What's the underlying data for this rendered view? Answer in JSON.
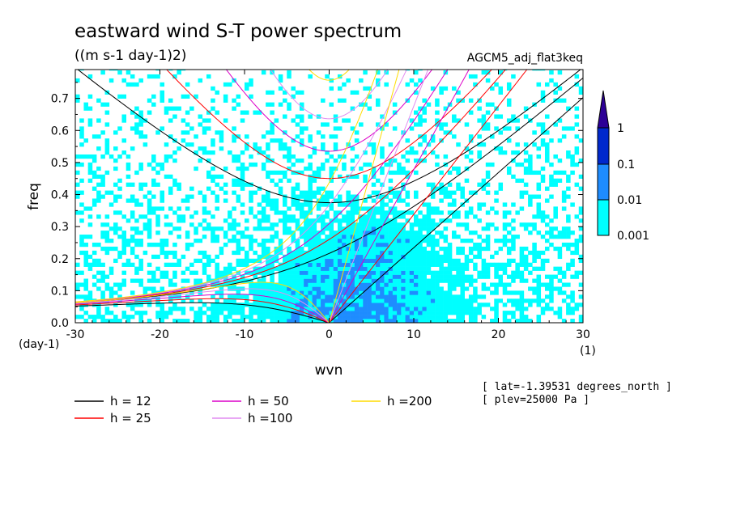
{
  "chart_data": {
    "type": "heatmap",
    "title": "eastward wind S-T power spectrum",
    "subtitle": "((m s-1 day-1)2)",
    "run_label": "AGCM5_adj_flat3keq",
    "xlabel": "wvn",
    "ylabel": "freq",
    "x_unit": "(1)",
    "y_unit": "(day-1)",
    "xlim": [
      -30,
      30
    ],
    "ylim": [
      0,
      0.79
    ],
    "x_ticks": [
      -30,
      -20,
      -10,
      0,
      10,
      20,
      30
    ],
    "x_tick_labels": [
      "-30",
      "-20",
      "-10",
      "0",
      "10",
      "20",
      "30"
    ],
    "y_ticks": [
      0.0,
      0.1,
      0.2,
      0.3,
      0.4,
      0.5,
      0.6,
      0.7
    ],
    "y_tick_labels": [
      "0.0",
      "0.1",
      "0.2",
      "0.3",
      "0.4",
      "0.5",
      "0.6",
      "0.7"
    ],
    "colorbar": {
      "levels": [
        0.001,
        0.01,
        0.1,
        1
      ],
      "level_labels": [
        "0.001",
        "0.01",
        "0.1",
        "1"
      ],
      "colors": [
        "#00ffff",
        "#1e8cff",
        "#0028cd",
        "#2d0096"
      ]
    },
    "dispersion_curves": [
      {
        "name": "h = 12",
        "h": 12,
        "color": "#000000"
      },
      {
        "name": "h = 25",
        "h": 25,
        "color": "#ff0000"
      },
      {
        "name": "h = 50",
        "h": 50,
        "color": "#dc00c8"
      },
      {
        "name": "h =100",
        "h": 100,
        "color": "#e18cf0"
      },
      {
        "name": "h =200",
        "h": 200,
        "color": "#ffdc00"
      }
    ],
    "info_lines": [
      "[ lat=-1.39531 degrees_north ]",
      "[ plev=25000 Pa ]"
    ]
  }
}
